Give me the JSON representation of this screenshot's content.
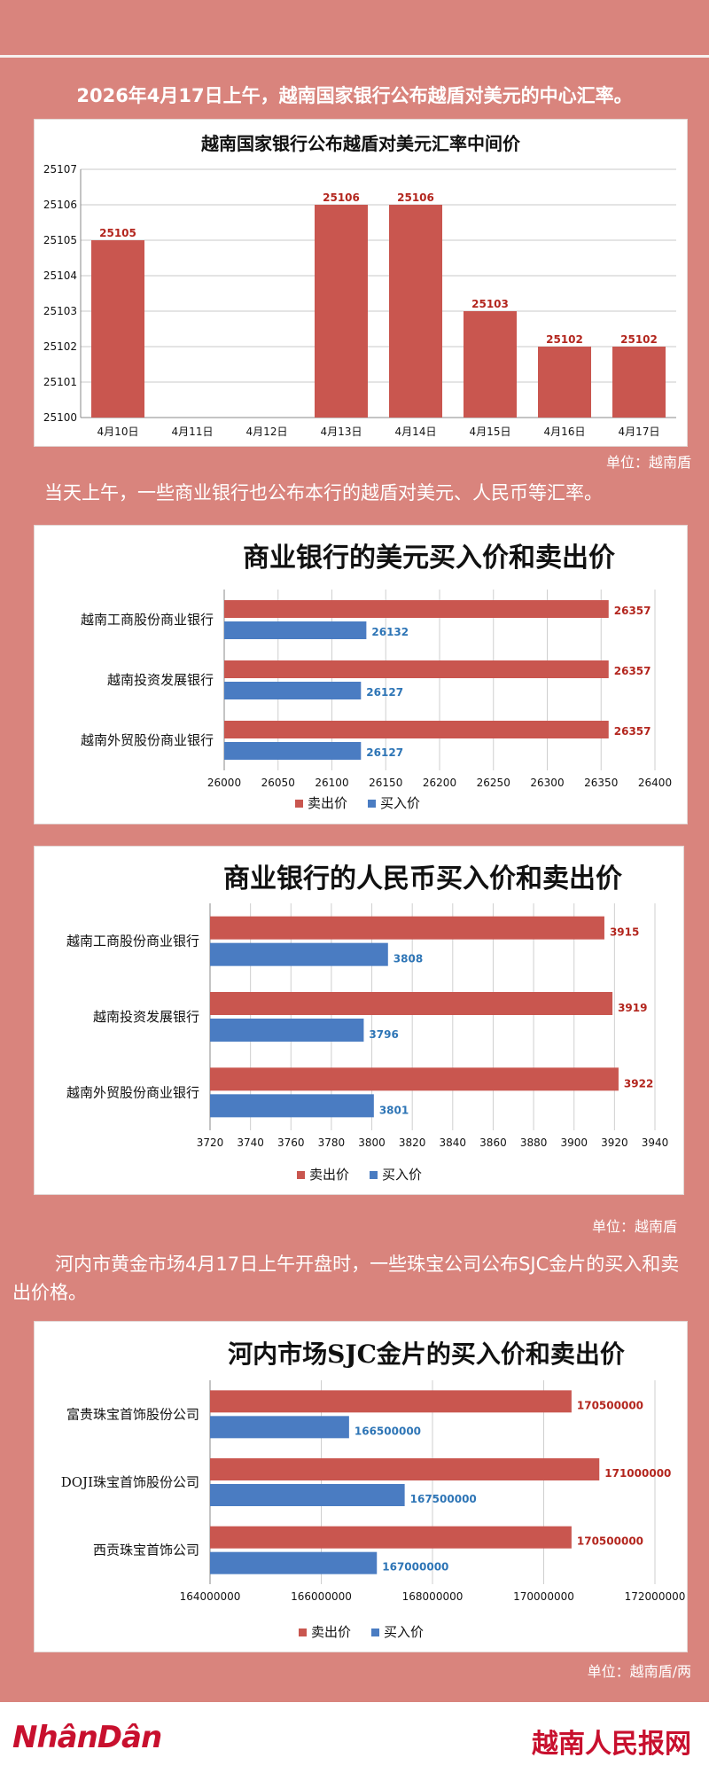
{
  "intro1": "2026年4月17日上午，越南国家银行公布越盾对美元的中心汇率。",
  "intro2": "当天上午，一些商业银行也公布本行的越盾对美元、人民币等汇率。",
  "intro3": "河内市黄金市场4月17日上午开盘时，一些珠宝公司公布SJC金片的买入和卖出价格。",
  "unit1": "单位：越南盾",
  "unit2": "单位：越南盾",
  "unit3": "单位：越南盾/两",
  "footer": {
    "left_logo": "NhânDân",
    "right_logo": "越南人民报网"
  },
  "colors": {
    "sell": "#c9564f",
    "buy": "#4a7cc2",
    "background": "#d9847d"
  },
  "chart_data": [
    {
      "type": "bar",
      "title": "越南国家银行公布越盾对美元汇率中间价",
      "categories": [
        "4月10日",
        "4月11日",
        "4月12日",
        "4月13日",
        "4月14日",
        "4月15日",
        "4月16日",
        "4月17日"
      ],
      "values": [
        25105,
        null,
        null,
        25106,
        25106,
        25103,
        25102,
        25102
      ],
      "data_labels": [
        "25105",
        "",
        "",
        "25106",
        "25106",
        "25103",
        "25102",
        "25102"
      ],
      "ylim": [
        25100,
        25107
      ],
      "yticks": [
        "25100",
        "25101",
        "25102",
        "25103",
        "25104",
        "25105",
        "25106",
        "25107"
      ],
      "grid": true
    },
    {
      "type": "bar",
      "orientation": "horizontal",
      "title": "商业银行的美元买入价和卖出价",
      "categories": [
        "越南工商股份商业银行",
        "越南投资发展银行",
        "越南外贸股份商业银行"
      ],
      "series": [
        {
          "name": "卖出价",
          "values": [
            26357,
            26357,
            26357
          ],
          "labels": [
            "26357",
            "26357",
            "26357"
          ]
        },
        {
          "name": "买入价",
          "values": [
            26132,
            26127,
            26127
          ],
          "labels": [
            "26132",
            "26127",
            "26127"
          ]
        }
      ],
      "xlim": [
        26000,
        26400
      ],
      "xticks": [
        "26000",
        "26050",
        "26100",
        "26150",
        "26200",
        "26250",
        "26300",
        "26350",
        "26400"
      ],
      "legend": "bottom",
      "grid": true
    },
    {
      "type": "bar",
      "orientation": "horizontal",
      "title": "商业银行的人民币买入价和卖出价",
      "categories": [
        "越南工商股份商业银行",
        "越南投资发展银行",
        "越南外贸股份商业银行"
      ],
      "series": [
        {
          "name": "卖出价",
          "values": [
            3915,
            3919,
            3922
          ],
          "labels": [
            "3915",
            "3919",
            "3922"
          ]
        },
        {
          "name": "买入价",
          "values": [
            3808,
            3796,
            3801
          ],
          "labels": [
            "3808",
            "3796",
            "3801"
          ]
        }
      ],
      "xlim": [
        3720,
        3940
      ],
      "xticks": [
        "3720",
        "3740",
        "3760",
        "3780",
        "3800",
        "3820",
        "3840",
        "3860",
        "3880",
        "3900",
        "3920",
        "3940"
      ],
      "legend": "bottom",
      "grid": true
    },
    {
      "type": "bar",
      "orientation": "horizontal",
      "title": "河内市场SJC金片的买入价和卖出价",
      "categories": [
        "富贵珠宝首饰股份公司",
        "DOJI珠宝首饰股份公司",
        "西贡珠宝首饰公司"
      ],
      "series": [
        {
          "name": "卖出价",
          "values": [
            170500000,
            171000000,
            170500000
          ],
          "labels": [
            "170500000",
            "171000000",
            "170500000"
          ]
        },
        {
          "name": "买入价",
          "values": [
            166500000,
            167500000,
            167000000
          ],
          "labels": [
            "166500000",
            "167500000",
            "167000000"
          ]
        }
      ],
      "xlim": [
        164000000,
        172000000
      ],
      "xticks": [
        "164000000",
        "166000000",
        "168000000",
        "170000000",
        "172000000"
      ],
      "legend": "bottom",
      "grid": true
    }
  ]
}
